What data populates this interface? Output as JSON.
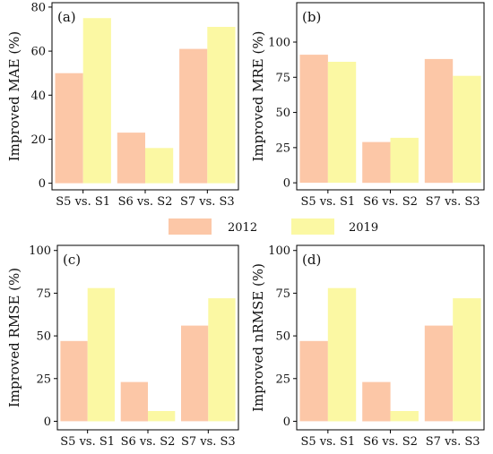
{
  "legend": {
    "items": [
      {
        "label": "2012",
        "color": "#fcc7a7"
      },
      {
        "label": "2019",
        "color": "#fbf8a3"
      }
    ]
  },
  "chart_data": [
    {
      "type": "bar",
      "panel_label": "(a)",
      "ylabel": "Improved MAE (%)",
      "categories": [
        "S5 vs. S1",
        "S6 vs. S2",
        "S7 vs. S3"
      ],
      "series": [
        {
          "name": "2012",
          "values": [
            50,
            23,
            61
          ]
        },
        {
          "name": "2019",
          "values": [
            75,
            16,
            71
          ]
        }
      ],
      "ylim": [
        -3,
        82
      ],
      "yticks": [
        0,
        20,
        40,
        60,
        80
      ],
      "grid": false,
      "legend_position": "bottom-center"
    },
    {
      "type": "bar",
      "panel_label": "(b)",
      "ylabel": "Improved MRE (%)",
      "categories": [
        "S5 vs. S1",
        "S6 vs. S2",
        "S7 vs. S3"
      ],
      "series": [
        {
          "name": "2012",
          "values": [
            91,
            29,
            88
          ]
        },
        {
          "name": "2019",
          "values": [
            86,
            32,
            76
          ]
        }
      ],
      "ylim": [
        -5,
        128
      ],
      "yticks": [
        0,
        25,
        50,
        75,
        100
      ],
      "grid": false,
      "legend_position": "bottom-center"
    },
    {
      "type": "bar",
      "panel_label": "(c)",
      "ylabel": "Improved RMSE (%)",
      "categories": [
        "S5 vs. S1",
        "S6 vs. S2",
        "S7 vs. S3"
      ],
      "series": [
        {
          "name": "2012",
          "values": [
            47,
            23,
            56
          ]
        },
        {
          "name": "2019",
          "values": [
            78,
            6,
            72
          ]
        }
      ],
      "ylim": [
        -5,
        103
      ],
      "yticks": [
        0,
        25,
        50,
        75,
        100
      ],
      "grid": false,
      "legend_position": "bottom-center"
    },
    {
      "type": "bar",
      "panel_label": "(d)",
      "ylabel": "Improved nRMSE (%)",
      "categories": [
        "S5 vs. S1",
        "S6 vs. S2",
        "S7 vs. S3"
      ],
      "series": [
        {
          "name": "2012",
          "values": [
            47,
            23,
            56
          ]
        },
        {
          "name": "2019",
          "values": [
            78,
            6,
            72
          ]
        }
      ],
      "ylim": [
        -5,
        103
      ],
      "yticks": [
        0,
        25,
        50,
        75,
        100
      ],
      "grid": false,
      "legend_position": "bottom-center"
    }
  ]
}
